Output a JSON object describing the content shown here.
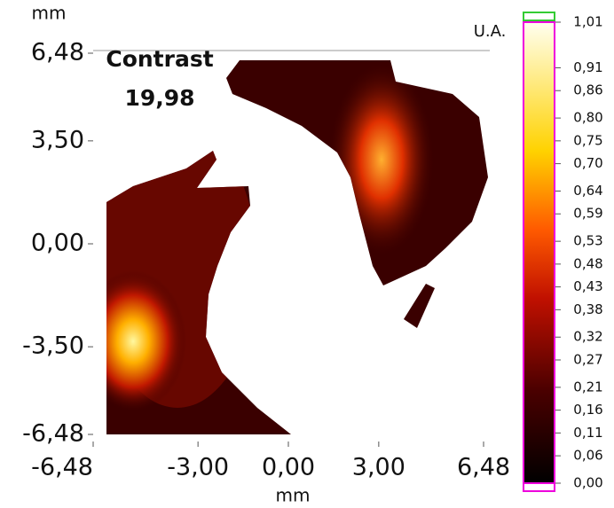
{
  "chart_data": {
    "type": "heatmap",
    "x_label": "mm",
    "y_label": "mm",
    "annotation_title": "Contrast",
    "annotation_value": "19,98",
    "xlim": [
      -6.48,
      6.48
    ],
    "xticks": [
      {
        "value": -6.48,
        "label": "-6,48"
      },
      {
        "value": -3.0,
        "label": "-3,00"
      },
      {
        "value": 0.0,
        "label": "0,00"
      },
      {
        "value": 3.0,
        "label": "3,00"
      },
      {
        "value": 6.48,
        "label": "6,48"
      }
    ],
    "ylim": [
      -6.48,
      6.48
    ],
    "yticks": [
      {
        "value": 6.48,
        "label": "6,48"
      },
      {
        "value": 3.5,
        "label": "3,50"
      },
      {
        "value": 0.0,
        "label": "0,00"
      },
      {
        "value": -3.5,
        "label": "-3,50"
      },
      {
        "value": -6.48,
        "label": "-6,48"
      }
    ],
    "colorbar_label": "U.A.",
    "clim": [
      0.0,
      1.01
    ],
    "colorbar_ticks": [
      {
        "value": 1.01,
        "label": "1,01"
      },
      {
        "value": 0.91,
        "label": "0,91"
      },
      {
        "value": 0.86,
        "label": "0,86"
      },
      {
        "value": 0.8,
        "label": "0,80"
      },
      {
        "value": 0.75,
        "label": "0,75"
      },
      {
        "value": 0.7,
        "label": "0,70"
      },
      {
        "value": 0.64,
        "label": "0,64"
      },
      {
        "value": 0.59,
        "label": "0,59"
      },
      {
        "value": 0.53,
        "label": "0,53"
      },
      {
        "value": 0.48,
        "label": "0,48"
      },
      {
        "value": 0.43,
        "label": "0,43"
      },
      {
        "value": 0.38,
        "label": "0,38"
      },
      {
        "value": 0.32,
        "label": "0,32"
      },
      {
        "value": 0.27,
        "label": "0,27"
      },
      {
        "value": 0.21,
        "label": "0,21"
      },
      {
        "value": 0.16,
        "label": "0,16"
      },
      {
        "value": 0.11,
        "label": "0,11"
      },
      {
        "value": 0.06,
        "label": "0,06"
      },
      {
        "value": 0.0,
        "label": "0,00"
      }
    ]
  }
}
